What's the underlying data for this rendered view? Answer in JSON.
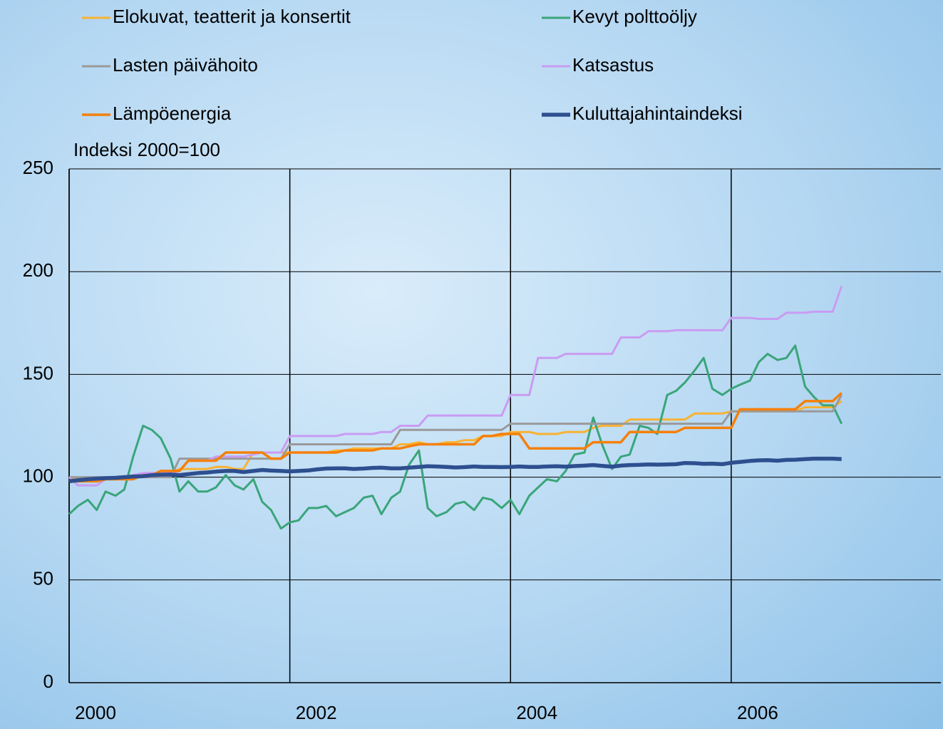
{
  "chart_data": {
    "type": "line",
    "y_label": "Indeksi 2000=100",
    "x": [
      2000,
      2000.08,
      2000.17,
      2000.25,
      2000.33,
      2000.42,
      2000.5,
      2000.58,
      2000.67,
      2000.75,
      2000.83,
      2000.92,
      2001,
      2001.08,
      2001.17,
      2001.25,
      2001.33,
      2001.42,
      2001.5,
      2001.58,
      2001.67,
      2001.75,
      2001.83,
      2001.92,
      2002,
      2002.08,
      2002.17,
      2002.25,
      2002.33,
      2002.42,
      2002.5,
      2002.58,
      2002.67,
      2002.75,
      2002.83,
      2002.92,
      2003,
      2003.08,
      2003.17,
      2003.25,
      2003.33,
      2003.42,
      2003.5,
      2003.58,
      2003.67,
      2003.75,
      2003.83,
      2003.92,
      2004,
      2004.08,
      2004.17,
      2004.25,
      2004.33,
      2004.42,
      2004.5,
      2004.58,
      2004.67,
      2004.75,
      2004.83,
      2004.92,
      2005,
      2005.08,
      2005.17,
      2005.25,
      2005.33,
      2005.42,
      2005.5,
      2005.58,
      2005.67,
      2005.75,
      2005.83,
      2005.92,
      2006,
      2006.08,
      2006.17,
      2006.25,
      2006.33,
      2006.42,
      2006.5,
      2006.58,
      2006.67,
      2006.75,
      2006.83,
      2006.92,
      2007
    ],
    "series": [
      {
        "name": "Elokuvat, teatterit ja konsertit",
        "color": "#f9b233",
        "width": 3,
        "values": [
          100,
          99,
          99,
          99,
          99,
          100,
          100,
          100,
          101,
          101,
          102,
          102,
          104,
          104,
          104,
          104,
          105,
          105,
          104,
          104,
          112,
          112,
          112,
          112,
          112,
          112,
          112,
          112,
          112,
          113,
          113,
          114,
          114,
          114,
          114,
          114,
          116,
          116,
          117,
          116,
          116,
          117,
          117,
          118,
          118,
          120,
          120,
          120,
          122,
          122,
          122,
          121,
          121,
          121,
          122,
          122,
          122,
          124,
          125,
          125,
          125,
          128,
          128,
          128,
          128,
          128,
          128,
          128,
          131,
          131,
          131,
          131,
          132,
          132,
          132,
          132,
          132,
          132,
          132,
          132,
          134,
          134,
          134,
          134,
          137
        ]
      },
      {
        "name": "Kevyt polttoöljy",
        "color": "#3aa57a",
        "width": 3,
        "values": [
          82,
          86,
          89,
          84,
          93,
          91,
          94,
          110,
          125,
          123,
          119,
          109,
          93,
          98,
          93,
          93,
          95,
          101,
          96,
          94,
          99,
          88,
          84,
          75,
          78,
          79,
          85,
          85,
          86,
          81,
          83,
          85,
          90,
          91,
          82,
          90,
          93,
          106,
          113,
          85,
          81,
          83,
          87,
          88,
          84,
          90,
          89,
          85,
          89,
          82,
          91,
          95,
          99,
          98,
          103,
          111,
          112,
          129,
          116,
          104,
          110,
          111,
          125,
          124,
          121,
          140,
          142,
          146,
          152,
          158,
          143,
          140,
          143,
          145,
          147,
          156,
          160,
          157,
          158,
          164,
          144,
          139,
          135,
          135,
          126
        ]
      },
      {
        "name": "Lasten päivähoito",
        "color": "#9a9a9a",
        "width": 3,
        "values": [
          100,
          100,
          100,
          100,
          100,
          100,
          100,
          100,
          100,
          100,
          100,
          100,
          109,
          109,
          109,
          109,
          109,
          109,
          109,
          109,
          109,
          109,
          109,
          109,
          116,
          116,
          116,
          116,
          116,
          116,
          116,
          116,
          116,
          116,
          116,
          116,
          123,
          123,
          123,
          123,
          123,
          123,
          123,
          123,
          123,
          123,
          123,
          123,
          126,
          126,
          126,
          126,
          126,
          126,
          126,
          126,
          126,
          126,
          126,
          126,
          126,
          126,
          126,
          126,
          126,
          126,
          126,
          126,
          126,
          126,
          126,
          126,
          132,
          132,
          132,
          132,
          132,
          132,
          132,
          132,
          132,
          132,
          132,
          132,
          140
        ]
      },
      {
        "name": "Katsastus",
        "color": "#c99cf2",
        "width": 3,
        "values": [
          100,
          96,
          96,
          96,
          99,
          100,
          100,
          101,
          102,
          102,
          102,
          102,
          103,
          108,
          108,
          108,
          110,
          110,
          110,
          110,
          111,
          112,
          112,
          112,
          120,
          120,
          120,
          120,
          120,
          120,
          121,
          121,
          121,
          121,
          122,
          122,
          125,
          125,
          125,
          130,
          130,
          130,
          130,
          130,
          130,
          130,
          130,
          130,
          140,
          140,
          140,
          158,
          158,
          158,
          160,
          160,
          160,
          160,
          160,
          160,
          168,
          168,
          168,
          171,
          171,
          171,
          171.5,
          171.5,
          171.5,
          171.5,
          171.5,
          171.5,
          177.5,
          177.5,
          177.5,
          177,
          177,
          177,
          180,
          180,
          180,
          180.5,
          180.5,
          180.5,
          193
        ]
      },
      {
        "name": "Lämpöenergia",
        "color": "#f5800a",
        "width": 3.5,
        "values": [
          98,
          98,
          98,
          98,
          99,
          99,
          99,
          99,
          101,
          101,
          103,
          103,
          103,
          108,
          108,
          108,
          108,
          112,
          112,
          112,
          112,
          112,
          109,
          109,
          112,
          112,
          112,
          112,
          112,
          112,
          113,
          113,
          113,
          113,
          114,
          114,
          114,
          115,
          116,
          116,
          116,
          116,
          116,
          116,
          116,
          120,
          120,
          121,
          121,
          121,
          114,
          114,
          114,
          114,
          114,
          114,
          114,
          117,
          117,
          117,
          117,
          122,
          122,
          122,
          122,
          122,
          122,
          124,
          124,
          124,
          124,
          124,
          124,
          133,
          133,
          133,
          133,
          133,
          133,
          133,
          137,
          137,
          137,
          137,
          141
        ]
      },
      {
        "name": "Kuluttajahintaindeksi",
        "color": "#2e4f8f",
        "width": 5.5,
        "values": [
          98,
          98.5,
          99,
          99.3,
          99.5,
          99.7,
          100,
          100.3,
          100.5,
          101,
          101.2,
          101.3,
          101,
          101.5,
          102,
          102.3,
          102.7,
          103,
          103,
          102.5,
          103,
          103.5,
          103.2,
          103,
          102.8,
          103,
          103.3,
          103.8,
          104.2,
          104.3,
          104.3,
          104,
          104.2,
          104.5,
          104.6,
          104.3,
          104.3,
          104.6,
          105,
          105.3,
          105.2,
          105,
          104.7,
          104.9,
          105.2,
          105,
          105,
          104.9,
          105,
          105.2,
          105,
          105,
          105.2,
          105.3,
          105.1,
          105.4,
          105.6,
          105.9,
          105.5,
          105.1,
          105.6,
          105.9,
          106,
          106.2,
          106.1,
          106.2,
          106.3,
          106.9,
          106.8,
          106.5,
          106.6,
          106.3,
          107,
          107.4,
          107.9,
          108.2,
          108.3,
          108,
          108.4,
          108.5,
          108.8,
          109,
          109,
          109,
          108.8
        ]
      }
    ],
    "xlim": [
      2000,
      2007.9
    ],
    "xticks": [
      2000,
      2002,
      2004,
      2006
    ],
    "ylim": [
      0,
      250
    ],
    "yticks": [
      0,
      50,
      100,
      150,
      200,
      250
    ],
    "grid": true,
    "grid_color": "#000000"
  }
}
